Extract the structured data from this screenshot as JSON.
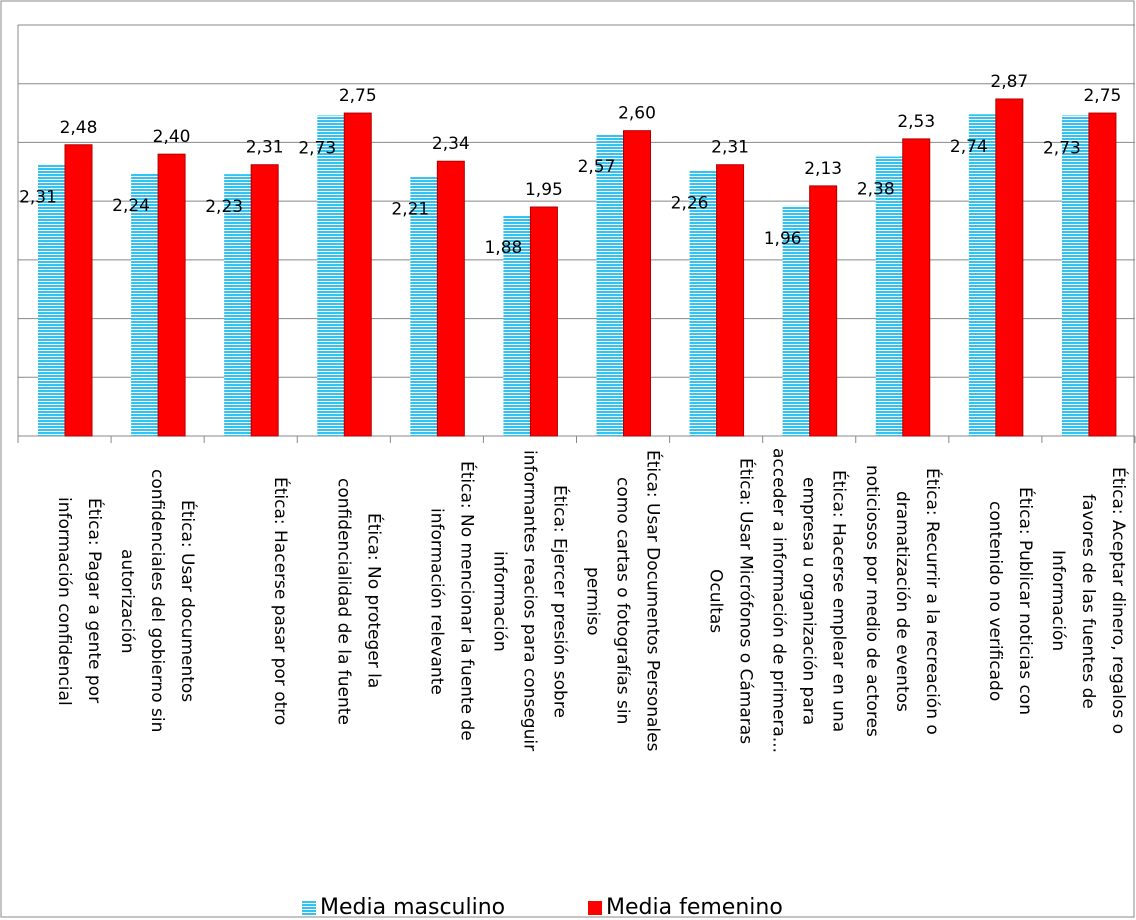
{
  "chart_data": {
    "type": "bar",
    "categories": [
      "Ética: Pagar a gente por información confidencial",
      "Ética: Usar documentos confidenciales del gobierno sin autorización",
      "Ética: Hacerse pasar por otro",
      "Ética: No proteger la confidencialidad de la fuente",
      "Ética: No mencionar la fuente de información relevante",
      "Ética: Ejercer presión sobre informantes reacios para conseguir información",
      "Ética: Usar Documentos Personales como cartas o fotografías sin permiso",
      "Ética: Usar Micrófonos o Cámaras Ocultas",
      "Ética: Hacerse emplear en una empresa u organización para acceder a información de primera...",
      "Ética: Recurrir a la recreación o dramatización de eventos noticiosos por medio de actores",
      "Ética: Publicar noticias con contenido no verificado",
      "Ética: Aceptar dinero, regalos o favores de las fuentes de Información"
    ],
    "series": [
      {
        "name": "Media masculino",
        "color": "#33c3f0",
        "values": [
          2.31,
          2.24,
          2.23,
          2.73,
          2.21,
          1.88,
          2.57,
          2.26,
          1.96,
          2.38,
          2.74,
          2.73
        ],
        "value_labels": [
          "2,31",
          "2,24",
          "2,23",
          "2,73",
          "2,21",
          "1,88",
          "2,57",
          "2,26",
          "1,96",
          "2,38",
          "2,74",
          "2,73"
        ]
      },
      {
        "name": "Media femenino",
        "color": "#ff0000",
        "values": [
          2.48,
          2.4,
          2.31,
          2.75,
          2.34,
          1.95,
          2.6,
          2.31,
          2.13,
          2.53,
          2.87,
          2.75
        ],
        "value_labels": [
          "2,48",
          "2,40",
          "2,31",
          "2,75",
          "2,34",
          "1,95",
          "2,60",
          "2,31",
          "2,13",
          "2,53",
          "2,87",
          "2,75"
        ]
      }
    ],
    "ylim": [
      0,
      3.5
    ],
    "yticks": [
      0,
      0.5,
      1,
      1.5,
      2,
      2.5,
      3,
      3.5
    ],
    "grid": true,
    "legend": "bottom"
  }
}
